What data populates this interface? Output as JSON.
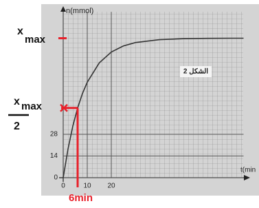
{
  "chart_data": {
    "type": "line",
    "y_label": "n(mmol)",
    "x_label": "t(min",
    "figure_label": "الشكل 2",
    "x": [
      0,
      2,
      4,
      6,
      8,
      10,
      15,
      20,
      25,
      30,
      40,
      50,
      60,
      70,
      75
    ],
    "values": [
      0,
      18.5,
      33.3,
      45,
      54.3,
      61.6,
      74.1,
      81.1,
      85,
      87.2,
      89.1,
      89.7,
      89.9,
      90,
      90
    ],
    "color": "#333333",
    "xlim": [
      0,
      75
    ],
    "ylim": [
      0,
      107
    ],
    "xticks": [
      0,
      10,
      20
    ],
    "yticks": [
      0,
      14,
      28
    ],
    "grid": true,
    "annotations": {
      "xmax": {
        "symbol": "x",
        "subscript": "max"
      },
      "half": {
        "symbol": "x",
        "subscript": "max",
        "denominator": "2"
      },
      "time": "6min",
      "color": "#e8202a"
    }
  }
}
